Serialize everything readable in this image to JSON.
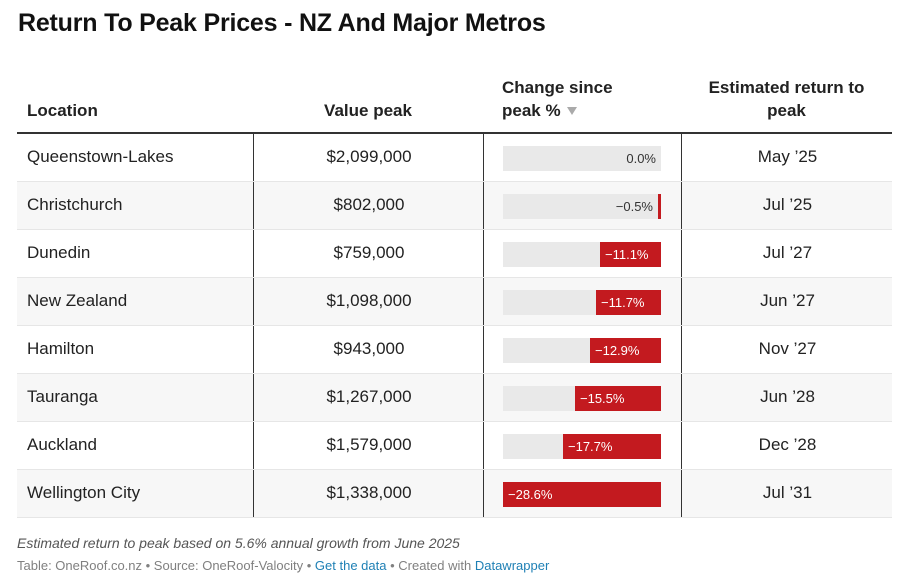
{
  "title": "Return To Peak Prices - NZ And Major Metros",
  "columns": {
    "location": "Location",
    "value_peak": "Value peak",
    "change_line1": "Change since",
    "change_line2": "peak %",
    "return_line1": "Estimated return to",
    "return_line2": "peak"
  },
  "rows": [
    {
      "location": "Queenstown-Lakes",
      "value_peak": "$2,099,000",
      "change_label": "0.0%",
      "change": 0.0,
      "return": "May ’25"
    },
    {
      "location": "Christchurch",
      "value_peak": "$802,000",
      "change_label": "−0.5%",
      "change": -0.5,
      "return": "Jul ’25"
    },
    {
      "location": "Dunedin",
      "value_peak": "$759,000",
      "change_label": "−11.1%",
      "change": -11.1,
      "return": "Jul ’27"
    },
    {
      "location": "New Zealand",
      "value_peak": "$1,098,000",
      "change_label": "−11.7%",
      "change": -11.7,
      "return": "Jun ’27"
    },
    {
      "location": "Hamilton",
      "value_peak": "$943,000",
      "change_label": "−12.9%",
      "change": -12.9,
      "return": "Nov ’27"
    },
    {
      "location": "Tauranga",
      "value_peak": "$1,267,000",
      "change_label": "−15.5%",
      "change": -15.5,
      "return": "Jun ’28"
    },
    {
      "location": "Auckland",
      "value_peak": "$1,579,000",
      "change_label": "−17.7%",
      "change": -17.7,
      "return": "Dec ’28"
    },
    {
      "location": "Wellington City",
      "value_peak": "$1,338,000",
      "change_label": "−28.6%",
      "change": -28.6,
      "return": "Jul ’31"
    }
  ],
  "change_scale_max": 28.6,
  "note": "Estimated return to peak based on 5.6% annual growth from June 2025",
  "footer": {
    "source_text": "Table: OneRoof.co.nz • Source: OneRoof-Valocity • ",
    "get_data_label": "Get the data",
    "sep": " • Created with ",
    "datawrapper_label": "Datawrapper"
  },
  "colors": {
    "bar": "#c31a1f",
    "track": "#e9e9e9",
    "link": "#1f80b5"
  }
}
